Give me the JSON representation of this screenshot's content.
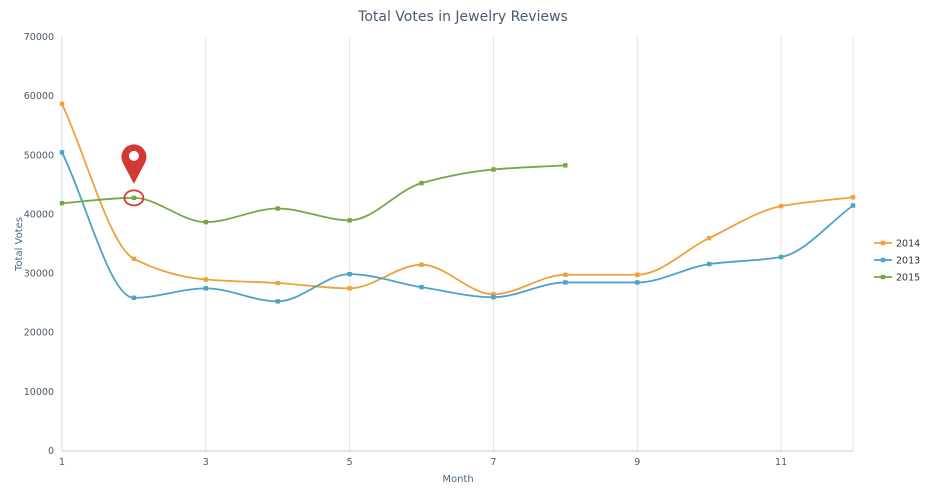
{
  "chart_data": {
    "type": "line",
    "title": "Total Votes in Jewelry Reviews",
    "xlabel": "Month",
    "ylabel": "Total Votes",
    "xlim": [
      1,
      12
    ],
    "ylim": [
      0,
      70000
    ],
    "x_ticks": [
      1,
      3,
      5,
      7,
      9,
      11
    ],
    "y_ticks": [
      0,
      10000,
      20000,
      30000,
      40000,
      50000,
      60000,
      70000
    ],
    "grid": "vertical",
    "legend_position": "right",
    "smooth": true,
    "series": [
      {
        "name": "2014",
        "color": "#f0a13a",
        "x": [
          1,
          2,
          3,
          4,
          5,
          6,
          7,
          8,
          9,
          10,
          11,
          12
        ],
        "values": [
          58700,
          32500,
          29000,
          28400,
          27500,
          31500,
          26500,
          29800,
          29800,
          36000,
          41400,
          42900
        ]
      },
      {
        "name": "2013",
        "color": "#4aa3c8",
        "x": [
          1,
          2,
          3,
          4,
          5,
          6,
          7,
          8,
          9,
          10,
          11,
          12
        ],
        "values": [
          50500,
          25900,
          27500,
          25300,
          29900,
          27700,
          26000,
          28500,
          28500,
          31600,
          32800,
          41500
        ]
      },
      {
        "name": "2015",
        "color": "#72a847",
        "x": [
          1,
          2,
          3,
          4,
          5,
          6,
          7,
          8
        ],
        "values": [
          41900,
          42800,
          38700,
          41000,
          39000,
          45300,
          47600,
          48300
        ]
      }
    ],
    "annotation": {
      "type": "location-pin",
      "x": 2,
      "y": 42800,
      "color": "#d03a33"
    }
  }
}
